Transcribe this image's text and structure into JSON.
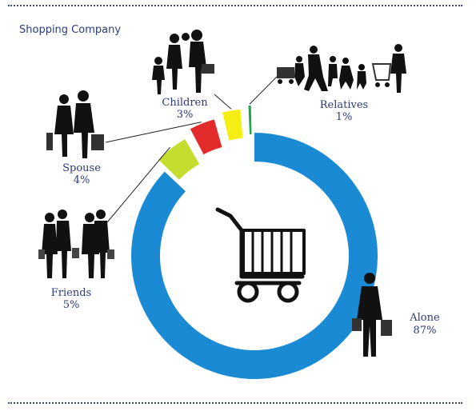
{
  "header": {
    "title": "Shopping Company"
  },
  "colors": {
    "Alone": "#1a8ad4",
    "Friends": "#c5dd2f",
    "Spouse": "#e32b2b",
    "Children": "#f5ee12",
    "Relatives": "#1aa84a",
    "label_text": "#2b3a7a",
    "leader_line": "#222222"
  },
  "chart_data": {
    "type": "pie",
    "title": "Shopping Company",
    "slices": [
      {
        "name": "Alone",
        "value": 87,
        "label": "87%"
      },
      {
        "name": "Friends",
        "value": 5,
        "label": "5%"
      },
      {
        "name": "Spouse",
        "value": 4,
        "label": "4%"
      },
      {
        "name": "Children",
        "value": 3,
        "label": "3%"
      },
      {
        "name": "Relatives",
        "value": 1,
        "label": "1%"
      }
    ]
  },
  "icons": {
    "center": "shopping-cart-icon",
    "Alone": "man-with-shopping-bags-icon",
    "Friends": "group-of-friends-shopping-icon",
    "Spouse": "couple-shopping-icon",
    "Children": "family-with-children-icon",
    "Relatives": "relatives-with-shopping-carts-icon"
  }
}
